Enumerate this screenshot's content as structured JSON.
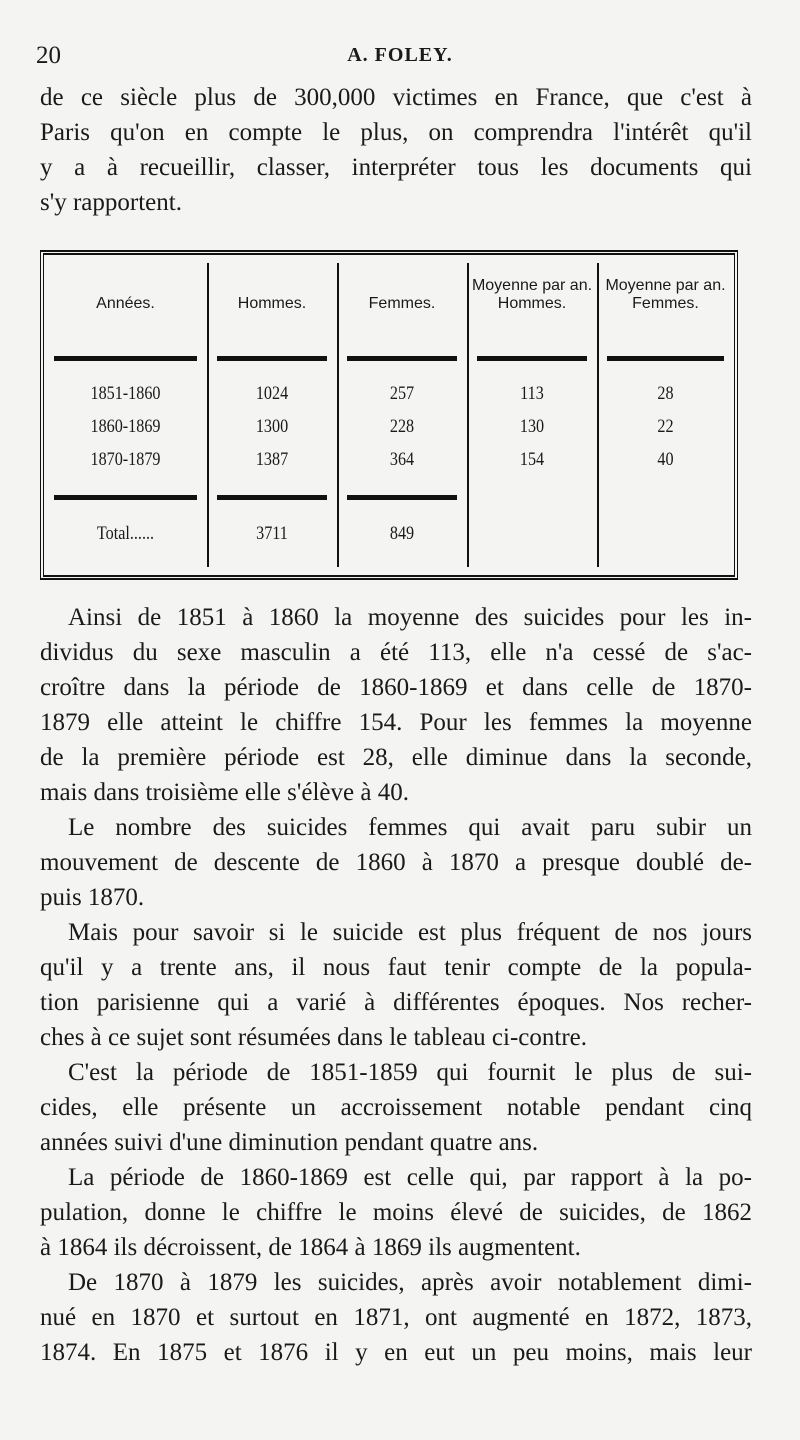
{
  "header": {
    "page_number": "20",
    "running_title": "A. FOLEY."
  },
  "para_before": [
    {
      "t": "de ce siècle plus de 300,000 victimes en France, que c'est à"
    },
    {
      "t": "Paris qu'on en compte le plus, on comprendra l'intérêt qu'il"
    },
    {
      "t": "y a à recueillir, classer, interpréter tous les documents qui"
    },
    {
      "t": "s'y rapportent.",
      "last": true
    }
  ],
  "table": {
    "headers": [
      "Années.",
      "Hommes.",
      "Femmes.",
      "Moyenne par an. Hommes.",
      "Moyenne par an. Femmes."
    ],
    "rows": [
      [
        "1851-1860",
        "1024",
        "257",
        "113",
        "28"
      ],
      [
        "1860-1869",
        "1300",
        "228",
        "130",
        "22"
      ],
      [
        "1870-1879",
        "1387",
        "364",
        "154",
        "40"
      ]
    ],
    "total": [
      "Total......",
      "3711",
      "849"
    ]
  },
  "para_after": [
    {
      "t": "Ainsi de 1851 à 1860 la moyenne des suicides pour les in-",
      "indent": true
    },
    {
      "t": "dividus du sexe masculin a été 113, elle n'a cessé de s'ac-"
    },
    {
      "t": "croître dans la période de 1860-1869 et dans celle de 1870-"
    },
    {
      "t": "1879 elle atteint le chiffre 154. Pour les femmes la moyenne"
    },
    {
      "t": "de la première période est 28, elle diminue dans la seconde,"
    },
    {
      "t": "mais dans troisième elle s'élève à 40.",
      "last": true
    },
    {
      "t": "Le nombre des suicides femmes qui avait paru subir un",
      "indent": true
    },
    {
      "t": "mouvement de descente de 1860 à 1870 a presque doublé de-"
    },
    {
      "t": "puis 1870.",
      "last": true
    },
    {
      "t": "Mais pour savoir si le suicide est plus fréquent de nos jours",
      "indent": true
    },
    {
      "t": "qu'il y a trente ans, il nous faut tenir compte de la popula-"
    },
    {
      "t": "tion parisienne qui a varié à différentes époques. Nos recher-"
    },
    {
      "t": "ches à ce sujet sont résumées dans le tableau ci-contre.",
      "last": true
    },
    {
      "t": "C'est la période de 1851-1859 qui fournit le plus de sui-",
      "indent": true
    },
    {
      "t": "cides, elle présente un accroissement notable pendant cinq"
    },
    {
      "t": "années suivi d'une diminution pendant quatre ans.",
      "last": true
    },
    {
      "t": "La période de 1860-1869 est celle qui, par rapport à la po-",
      "indent": true
    },
    {
      "t": "pulation, donne le chiffre le moins élevé de suicides, de 1862"
    },
    {
      "t": "à 1864 ils décroissent, de 1864 à 1869 ils augmentent.",
      "last": true
    },
    {
      "t": "De 1870 à 1879 les suicides, après avoir notablement dimi-",
      "indent": true
    },
    {
      "t": "nué en 1870 et surtout en 1871, ont augmenté en 1872, 1873,"
    },
    {
      "t": "1874. En 1875 et 1876 il y en eut un peu moins, mais leur"
    }
  ]
}
